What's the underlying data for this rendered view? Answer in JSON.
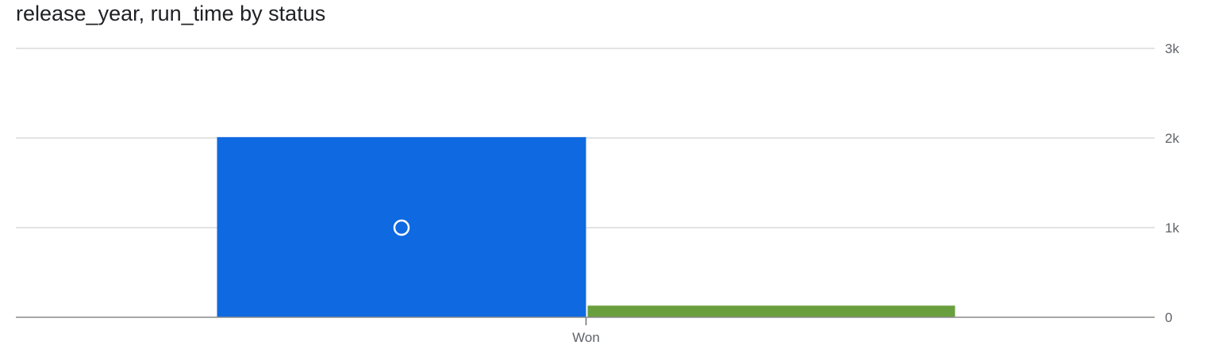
{
  "chart_data": {
    "type": "bar",
    "title": "release_year, run_time by status",
    "categories": [
      "Won"
    ],
    "series": [
      {
        "values": [
          2010
        ],
        "color": "#0f69e0"
      },
      {
        "values": [
          130
        ],
        "color": "#6a9f3d"
      }
    ],
    "y_ticks": [
      {
        "value": 0,
        "label": "0"
      },
      {
        "value": 1000,
        "label": "1k"
      },
      {
        "value": 2000,
        "label": "2k"
      },
      {
        "value": 3000,
        "label": "3k"
      }
    ],
    "ylim": [
      0,
      3000
    ],
    "y_axis_side": "right",
    "grid": true,
    "marker": {
      "series": 0,
      "category": 0,
      "value": 1000
    }
  }
}
